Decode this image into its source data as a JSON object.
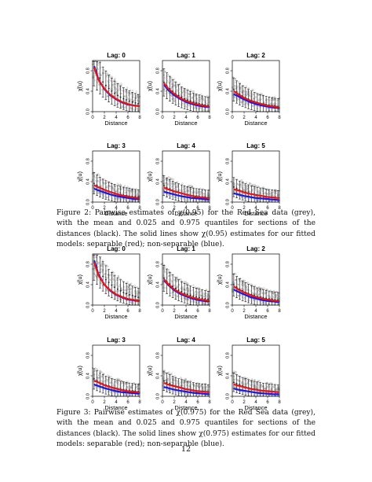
{
  "figures": [
    {
      "caption": "Figure 2: Pairwise estimates of χ(0.95) for the Red Sea data (grey), with the mean and 0.025 and 0.975 quantiles for sections of the distances (black). The solid lines show χ(0.95) estimates for our fitted models: separable (red); non-separable (blue).",
      "panels": [
        {
          "title": "Lag: 0"
        },
        {
          "title": "Lag: 1"
        },
        {
          "title": "Lag: 2"
        },
        {
          "title": "Lag: 3"
        },
        {
          "title": "Lag: 4"
        },
        {
          "title": "Lag: 5"
        }
      ]
    },
    {
      "caption": "Figure 3: Pairwise estimates of χ(0.975) for the Red Sea data (grey), with the mean and 0.025 and 0.975 quantiles for sections of the distances (black). The solid lines show χ(0.975) estimates for our fitted models: separable (red); non-separable (blue).",
      "panels": [
        {
          "title": "Lag: 0"
        },
        {
          "title": "Lag: 1"
        },
        {
          "title": "Lag: 2"
        },
        {
          "title": "Lag: 3"
        },
        {
          "title": "Lag: 4"
        },
        {
          "title": "Lag: 5"
        }
      ]
    }
  ],
  "axes": {
    "xlabel": "Distance",
    "ylabel": "χ̂(u)",
    "xticks": [
      "0",
      "2",
      "4",
      "6",
      "8"
    ],
    "yticks": [
      "0.0",
      "0.4",
      "0.8"
    ]
  },
  "chart_data": [
    {
      "type": "scatter",
      "title": "Lag: 0",
      "xlabel": "Distance",
      "ylabel": "χ̂(u)",
      "xlim": [
        0,
        8
      ],
      "ylim": [
        0,
        1
      ],
      "series": [
        {
          "name": "separable",
          "color": "#e8141c",
          "x": [
            0.3,
            1,
            2,
            3,
            4,
            5,
            6,
            7,
            7.8
          ],
          "y": [
            0.85,
            0.62,
            0.45,
            0.33,
            0.25,
            0.19,
            0.15,
            0.12,
            0.11
          ]
        },
        {
          "name": "non-separable",
          "color": "#1a1adf",
          "x": [
            0.3,
            1,
            2,
            3,
            4,
            5,
            6,
            7,
            7.8
          ],
          "y": [
            0.88,
            0.63,
            0.44,
            0.32,
            0.24,
            0.18,
            0.14,
            0.12,
            0.11
          ]
        }
      ]
    },
    {
      "type": "scatter",
      "title": "Lag: 1",
      "xlabel": "Distance",
      "ylabel": "χ̂(u)",
      "xlim": [
        0,
        8
      ],
      "ylim": [
        0,
        1
      ],
      "series": [
        {
          "name": "separable",
          "color": "#e8141c",
          "x": [
            0.3,
            1,
            2,
            3,
            4,
            5,
            6,
            7,
            7.8
          ],
          "y": [
            0.55,
            0.45,
            0.35,
            0.27,
            0.21,
            0.17,
            0.14,
            0.12,
            0.1
          ]
        },
        {
          "name": "non-separable",
          "color": "#1a1adf",
          "x": [
            0.3,
            1,
            2,
            3,
            4,
            5,
            6,
            7,
            7.8
          ],
          "y": [
            0.52,
            0.42,
            0.32,
            0.25,
            0.19,
            0.15,
            0.12,
            0.1,
            0.09
          ]
        }
      ]
    },
    {
      "type": "scatter",
      "title": "Lag: 2",
      "xlabel": "Distance",
      "ylabel": "χ̂(u)",
      "xlim": [
        0,
        8
      ],
      "ylim": [
        0,
        1
      ],
      "series": [
        {
          "name": "separable",
          "color": "#e8141c",
          "x": [
            0.3,
            1,
            2,
            3,
            4,
            5,
            6,
            7,
            7.8
          ],
          "y": [
            0.4,
            0.34,
            0.27,
            0.22,
            0.18,
            0.15,
            0.12,
            0.1,
            0.09
          ]
        },
        {
          "name": "non-separable",
          "color": "#1a1adf",
          "x": [
            0.3,
            1,
            2,
            3,
            4,
            5,
            6,
            7,
            7.8
          ],
          "y": [
            0.34,
            0.3,
            0.24,
            0.19,
            0.15,
            0.12,
            0.1,
            0.08,
            0.07
          ]
        }
      ]
    },
    {
      "type": "scatter",
      "title": "Lag: 3",
      "xlabel": "Distance",
      "ylabel": "χ̂(u)",
      "xlim": [
        0,
        8
      ],
      "ylim": [
        0,
        1
      ],
      "series": [
        {
          "name": "separable",
          "color": "#e8141c",
          "x": [
            0.3,
            1,
            2,
            3,
            4,
            5,
            6,
            7,
            7.8
          ],
          "y": [
            0.33,
            0.29,
            0.24,
            0.2,
            0.16,
            0.13,
            0.11,
            0.09,
            0.08
          ]
        },
        {
          "name": "non-separable",
          "color": "#1a1adf",
          "x": [
            0.3,
            1,
            2,
            3,
            4,
            5,
            6,
            7,
            7.8
          ],
          "y": [
            0.26,
            0.23,
            0.19,
            0.15,
            0.12,
            0.1,
            0.08,
            0.06,
            0.06
          ]
        }
      ]
    },
    {
      "type": "scatter",
      "title": "Lag: 4",
      "xlabel": "Distance",
      "ylabel": "χ̂(u)",
      "xlim": [
        0,
        8
      ],
      "ylim": [
        0,
        1
      ],
      "series": [
        {
          "name": "separable",
          "color": "#e8141c",
          "x": [
            0.3,
            1,
            2,
            3,
            4,
            5,
            6,
            7,
            7.8
          ],
          "y": [
            0.28,
            0.25,
            0.21,
            0.18,
            0.15,
            0.12,
            0.1,
            0.09,
            0.08
          ]
        },
        {
          "name": "non-separable",
          "color": "#1a1adf",
          "x": [
            0.3,
            1,
            2,
            3,
            4,
            5,
            6,
            7,
            7.8
          ],
          "y": [
            0.2,
            0.18,
            0.15,
            0.12,
            0.1,
            0.08,
            0.07,
            0.06,
            0.05
          ]
        }
      ]
    },
    {
      "type": "scatter",
      "title": "Lag: 5",
      "xlabel": "Distance",
      "ylabel": "χ̂(u)",
      "xlim": [
        0,
        8
      ],
      "ylim": [
        0,
        1
      ],
      "series": [
        {
          "name": "separable",
          "color": "#e8141c",
          "x": [
            0.3,
            1,
            2,
            3,
            4,
            5,
            6,
            7,
            7.8
          ],
          "y": [
            0.25,
            0.23,
            0.19,
            0.16,
            0.14,
            0.12,
            0.1,
            0.09,
            0.08
          ]
        },
        {
          "name": "non-separable",
          "color": "#1a1adf",
          "x": [
            0.3,
            1,
            2,
            3,
            4,
            5,
            6,
            7,
            7.8
          ],
          "y": [
            0.17,
            0.15,
            0.12,
            0.1,
            0.08,
            0.07,
            0.06,
            0.05,
            0.04
          ]
        }
      ]
    },
    {
      "type": "scatter",
      "title": "Lag: 0",
      "xlabel": "Distance",
      "ylabel": "χ̂(u)",
      "xlim": [
        0,
        8
      ],
      "ylim": [
        0,
        1
      ],
      "series": [
        {
          "name": "separable",
          "color": "#e8141c",
          "x": [
            0.3,
            1,
            2,
            3,
            4,
            5,
            6,
            7,
            7.8
          ],
          "y": [
            0.82,
            0.58,
            0.4,
            0.29,
            0.21,
            0.16,
            0.12,
            0.1,
            0.09
          ]
        },
        {
          "name": "non-separable",
          "color": "#1a1adf",
          "x": [
            0.3,
            1,
            2,
            3,
            4,
            5,
            6,
            7,
            7.8
          ],
          "y": [
            0.86,
            0.6,
            0.4,
            0.28,
            0.2,
            0.15,
            0.11,
            0.09,
            0.08
          ]
        }
      ]
    },
    {
      "type": "scatter",
      "title": "Lag: 1",
      "xlabel": "Distance",
      "ylabel": "χ̂(u)",
      "xlim": [
        0,
        8
      ],
      "ylim": [
        0,
        1
      ],
      "series": [
        {
          "name": "separable",
          "color": "#e8141c",
          "x": [
            0.3,
            1,
            2,
            3,
            4,
            5,
            6,
            7,
            7.8
          ],
          "y": [
            0.5,
            0.41,
            0.31,
            0.24,
            0.19,
            0.15,
            0.12,
            0.1,
            0.09
          ]
        },
        {
          "name": "non-separable",
          "color": "#1a1adf",
          "x": [
            0.3,
            1,
            2,
            3,
            4,
            5,
            6,
            7,
            7.8
          ],
          "y": [
            0.48,
            0.39,
            0.29,
            0.22,
            0.17,
            0.13,
            0.1,
            0.08,
            0.07
          ]
        }
      ]
    },
    {
      "type": "scatter",
      "title": "Lag: 2",
      "xlabel": "Distance",
      "ylabel": "χ̂(u)",
      "xlim": [
        0,
        8
      ],
      "ylim": [
        0,
        1
      ],
      "series": [
        {
          "name": "separable",
          "color": "#e8141c",
          "x": [
            0.3,
            1,
            2,
            3,
            4,
            5,
            6,
            7,
            7.8
          ],
          "y": [
            0.36,
            0.31,
            0.25,
            0.2,
            0.16,
            0.13,
            0.11,
            0.09,
            0.08
          ]
        },
        {
          "name": "non-separable",
          "color": "#1a1adf",
          "x": [
            0.3,
            1,
            2,
            3,
            4,
            5,
            6,
            7,
            7.8
          ],
          "y": [
            0.3,
            0.26,
            0.21,
            0.16,
            0.13,
            0.1,
            0.08,
            0.07,
            0.06
          ]
        }
      ]
    },
    {
      "type": "scatter",
      "title": "Lag: 3",
      "xlabel": "Distance",
      "ylabel": "χ̂(u)",
      "xlim": [
        0,
        8
      ],
      "ylim": [
        0,
        1
      ],
      "series": [
        {
          "name": "separable",
          "color": "#e8141c",
          "x": [
            0.3,
            1,
            2,
            3,
            4,
            5,
            6,
            7,
            7.8
          ],
          "y": [
            0.3,
            0.27,
            0.22,
            0.18,
            0.15,
            0.12,
            0.1,
            0.09,
            0.08
          ]
        },
        {
          "name": "non-separable",
          "color": "#1a1adf",
          "x": [
            0.3,
            1,
            2,
            3,
            4,
            5,
            6,
            7,
            7.8
          ],
          "y": [
            0.23,
            0.2,
            0.16,
            0.13,
            0.1,
            0.08,
            0.07,
            0.06,
            0.05
          ]
        }
      ]
    },
    {
      "type": "scatter",
      "title": "Lag: 4",
      "xlabel": "Distance",
      "ylabel": "χ̂(u)",
      "xlim": [
        0,
        8
      ],
      "ylim": [
        0,
        1
      ],
      "series": [
        {
          "name": "separable",
          "color": "#e8141c",
          "x": [
            0.3,
            1,
            2,
            3,
            4,
            5,
            6,
            7,
            7.8
          ],
          "y": [
            0.26,
            0.23,
            0.2,
            0.17,
            0.14,
            0.12,
            0.1,
            0.09,
            0.08
          ]
        },
        {
          "name": "non-separable",
          "color": "#1a1adf",
          "x": [
            0.3,
            1,
            2,
            3,
            4,
            5,
            6,
            7,
            7.8
          ],
          "y": [
            0.18,
            0.16,
            0.13,
            0.11,
            0.09,
            0.07,
            0.06,
            0.05,
            0.04
          ]
        }
      ]
    },
    {
      "type": "scatter",
      "title": "Lag: 5",
      "xlabel": "Distance",
      "ylabel": "χ̂(u)",
      "xlim": [
        0,
        8
      ],
      "ylim": [
        0,
        1
      ],
      "series": [
        {
          "name": "separable",
          "color": "#e8141c",
          "x": [
            0.3,
            1,
            2,
            3,
            4,
            5,
            6,
            7,
            7.8
          ],
          "y": [
            0.23,
            0.21,
            0.18,
            0.15,
            0.13,
            0.11,
            0.1,
            0.09,
            0.08
          ]
        },
        {
          "name": "non-separable",
          "color": "#1a1adf",
          "x": [
            0.3,
            1,
            2,
            3,
            4,
            5,
            6,
            7,
            7.8
          ],
          "y": [
            0.15,
            0.13,
            0.11,
            0.09,
            0.07,
            0.06,
            0.05,
            0.04,
            0.04
          ]
        }
      ]
    }
  ],
  "page_number": "12"
}
